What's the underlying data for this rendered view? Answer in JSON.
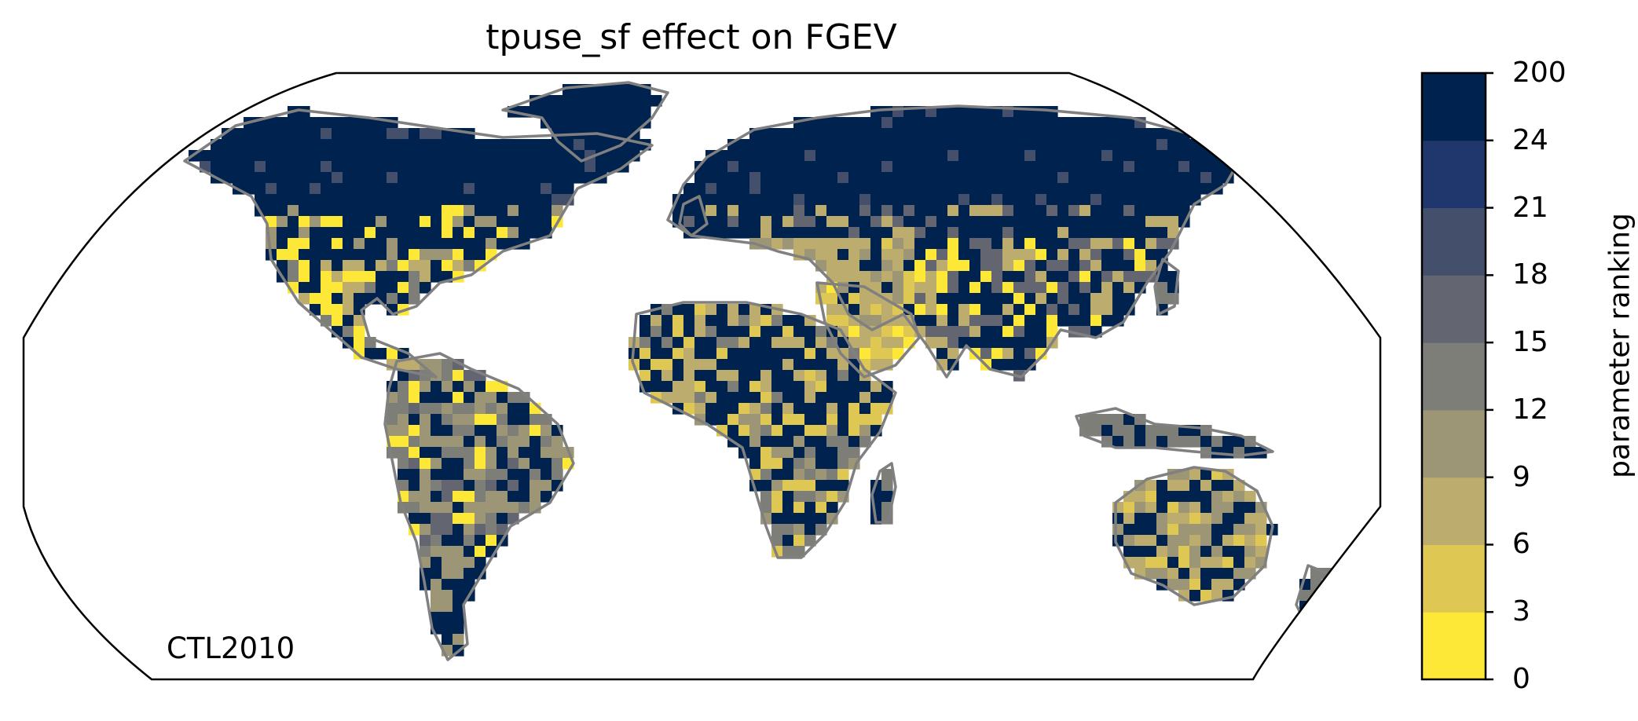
{
  "title": "tpuse_sf effect on FGEV",
  "panel_label": "CTL2010",
  "map": {
    "projection": "Robinson",
    "coastline_color": "#808080",
    "background": "#ffffff",
    "content": "gridded global land field of parameter ranking; ocean blank"
  },
  "colorbar": {
    "label": "parameter ranking",
    "ticks": [
      "0",
      "3",
      "6",
      "9",
      "12",
      "15",
      "18",
      "21",
      "24",
      "200"
    ],
    "bins": [
      {
        "range": "0-3",
        "color": "#fde737"
      },
      {
        "range": "3-6",
        "color": "#dfc754"
      },
      {
        "range": "6-9",
        "color": "#bcad6e"
      },
      {
        "range": "9-12",
        "color": "#9c9676"
      },
      {
        "range": "12-15",
        "color": "#7e7e78"
      },
      {
        "range": "15-18",
        "color": "#636670"
      },
      {
        "range": "18-21",
        "color": "#444f6b"
      },
      {
        "range": "21-24",
        "color": "#1f376c"
      },
      {
        "range": "24-200",
        "color": "#00224e"
      }
    ]
  }
}
